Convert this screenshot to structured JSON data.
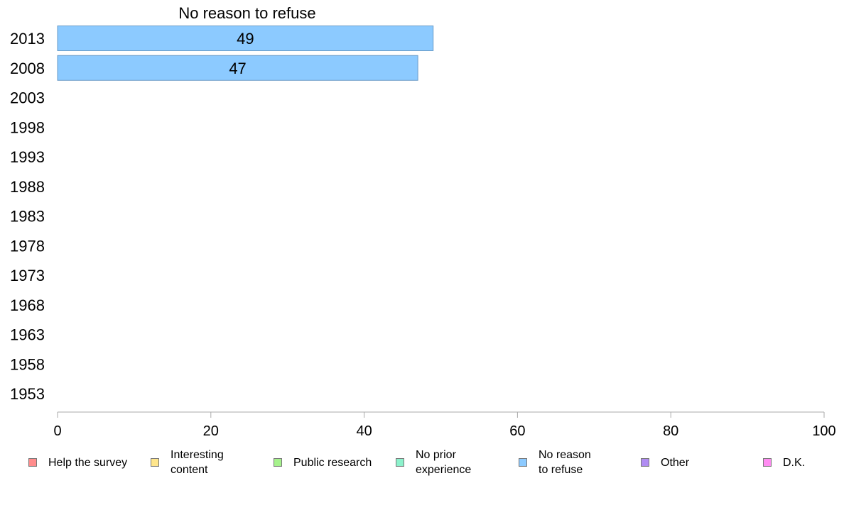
{
  "chart_data": {
    "type": "bar",
    "orientation": "horizontal",
    "title": "No reason to refuse",
    "categories": [
      "2013",
      "2008",
      "2003",
      "1998",
      "1993",
      "1988",
      "1983",
      "1978",
      "1973",
      "1968",
      "1963",
      "1958",
      "1953"
    ],
    "series": [
      {
        "name": "No reason to refuse",
        "color": "#8ccaff",
        "values": [
          49,
          47,
          null,
          null,
          null,
          null,
          null,
          null,
          null,
          null,
          null,
          null,
          null
        ]
      }
    ],
    "xlim": [
      0,
      100
    ],
    "xticks": [
      0,
      20,
      40,
      60,
      80,
      100
    ],
    "grid": false,
    "legend_position": "bottom",
    "legend": [
      {
        "label": "Help the survey",
        "color": "#ff8c8c"
      },
      {
        "label": "Interesting\ncontent",
        "color": "#ffe68c"
      },
      {
        "label": "Public research",
        "color": "#a6f28c"
      },
      {
        "label": "No prior\nexperience",
        "color": "#8cf2cc"
      },
      {
        "label": "No reason\nto refuse",
        "color": "#8ccaff"
      },
      {
        "label": "Other",
        "color": "#b08cf2"
      },
      {
        "label": "D.K.",
        "color": "#ff8cf2"
      }
    ]
  }
}
